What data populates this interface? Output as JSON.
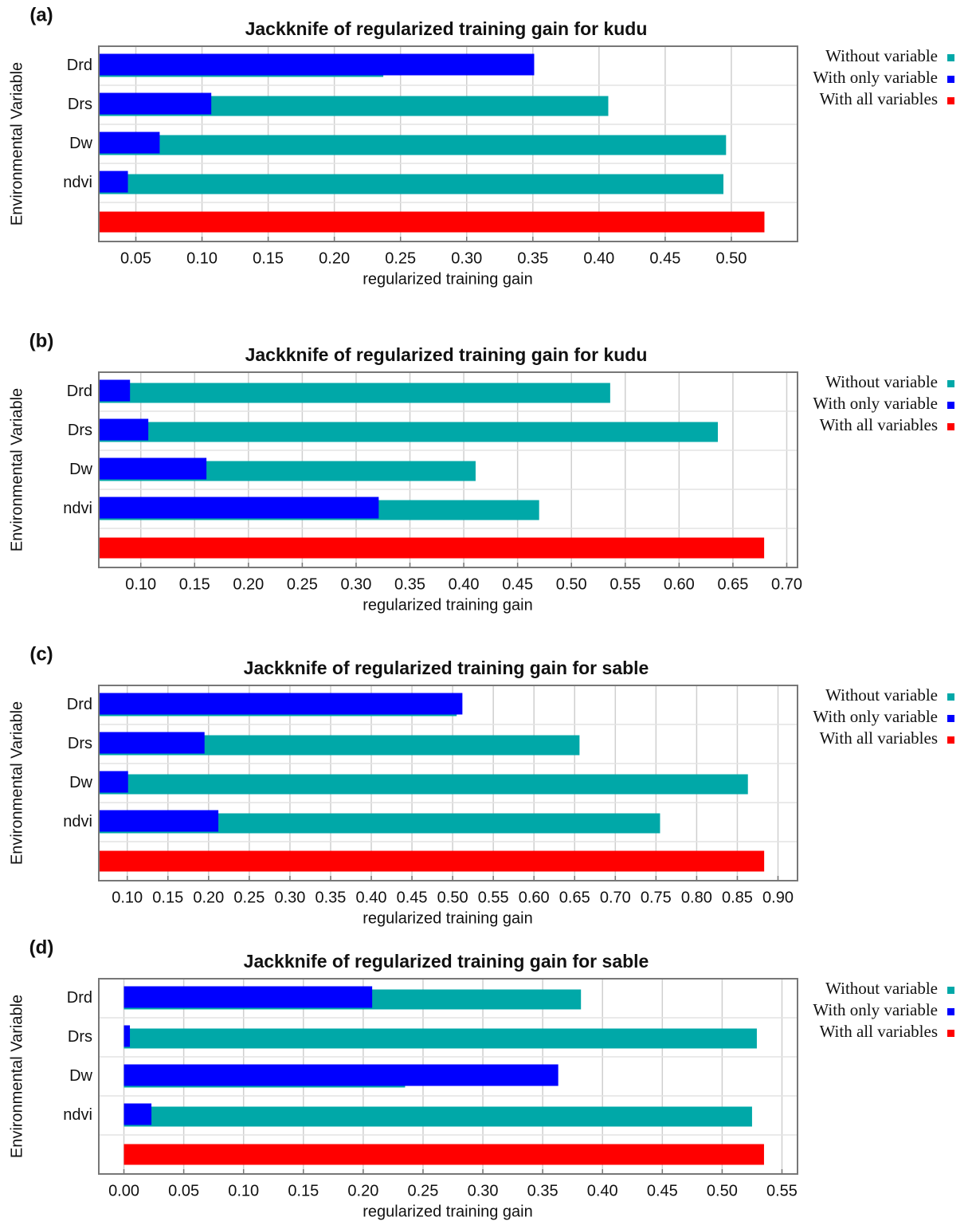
{
  "chart_data": [
    {
      "type": "bar",
      "label": "(a)",
      "title": "Jackknife of regularized training gain for kudu",
      "xlabel": "regularized training gain",
      "ylabel": "Environmental Variable",
      "categories": [
        "Drd",
        "Drs",
        "Dw",
        "ndvi",
        null
      ],
      "series": [
        {
          "name": "Without variable",
          "color": "#00a8a8",
          "values": [
            0.237,
            0.407,
            0.496,
            0.494,
            null
          ]
        },
        {
          "name": "With only variable",
          "color": "#0000ff",
          "values": [
            0.351,
            0.107,
            0.068,
            0.044,
            null
          ]
        },
        {
          "name": "With all variables",
          "color": "#ff0000",
          "values": [
            null,
            null,
            null,
            null,
            0.525
          ]
        }
      ],
      "xlim": [
        0.022,
        0.55
      ],
      "xticks": [
        0.05,
        {
          "value": 0.1,
          "label": "0.10"
        },
        0.15,
        {
          "value": 0.2,
          "label": "0.20"
        },
        0.25,
        {
          "value": 0.3,
          "label": "0.30"
        },
        0.35,
        {
          "value": 0.4,
          "label": "0.40"
        },
        0.45,
        {
          "value": 0.5,
          "label": "0.50"
        }
      ],
      "grid": true
    },
    {
      "type": "bar",
      "label": "(b)",
      "title": "Jackknife of regularized training gain for kudu",
      "xlabel": "regularized training gain",
      "ylabel": "Environmental Variable",
      "categories": [
        "Drd",
        "Drs",
        "Dw",
        "ndvi",
        null
      ],
      "series": [
        {
          "name": "Without variable",
          "color": "#00a8a8",
          "values": [
            0.536,
            0.636,
            0.411,
            0.47,
            null
          ]
        },
        {
          "name": "With only variable",
          "color": "#0000ff",
          "values": [
            0.09,
            0.107,
            0.161,
            0.321,
            null
          ]
        },
        {
          "name": "With all variables",
          "color": "#ff0000",
          "values": [
            null,
            null,
            null,
            null,
            0.679
          ]
        }
      ],
      "xlim": [
        0.061,
        0.71
      ],
      "xticks": [
        {
          "value": 0.1,
          "label": "0.10"
        },
        0.15,
        {
          "value": 0.2,
          "label": "0.20"
        },
        0.25,
        {
          "value": 0.3,
          "label": "0.30"
        },
        0.35,
        {
          "value": 0.4,
          "label": "0.40"
        },
        0.45,
        {
          "value": 0.5,
          "label": "0.50"
        },
        0.55,
        {
          "value": 0.6,
          "label": "0.60"
        },
        0.65,
        {
          "value": 0.7,
          "label": "0.70"
        }
      ],
      "grid": true
    },
    {
      "type": "bar",
      "label": "(c)",
      "title": "Jackknife of regularized training gain for sable",
      "xlabel": "regularized training gain",
      "ylabel": "Environmental Variable",
      "categories": [
        "Drd",
        "Drs",
        "Dw",
        "ndvi",
        null
      ],
      "series": [
        {
          "name": "Without variable",
          "color": "#00a8a8",
          "values": [
            0.505,
            0.656,
            0.863,
            0.755,
            null
          ]
        },
        {
          "name": "With only variable",
          "color": "#0000ff",
          "values": [
            0.512,
            0.195,
            0.101,
            0.212,
            null
          ]
        },
        {
          "name": "With all variables",
          "color": "#ff0000",
          "values": [
            null,
            null,
            null,
            null,
            0.883
          ]
        }
      ],
      "xlim": [
        0.065,
        0.924
      ],
      "xticks": [
        {
          "value": 0.1,
          "label": "0.10"
        },
        0.15,
        {
          "value": 0.2,
          "label": "0.20"
        },
        0.25,
        {
          "value": 0.3,
          "label": "0.30"
        },
        0.35,
        {
          "value": 0.4,
          "label": "0.40"
        },
        0.45,
        {
          "value": 0.5,
          "label": "0.50"
        },
        0.55,
        {
          "value": 0.6,
          "label": "0.60"
        },
        0.65,
        {
          "value": 0.7,
          "label": "0.70"
        },
        0.75,
        {
          "value": 0.8,
          "label": "0.80"
        },
        0.85,
        {
          "value": 0.9,
          "label": "0.90"
        }
      ],
      "grid": true
    },
    {
      "type": "bar",
      "label": "(d)",
      "title": "Jackknife of regularized training gain for sable",
      "xlabel": "regularized training gain",
      "ylabel": "Environmental Variable",
      "categories": [
        "Drd",
        "Drs",
        "Dw",
        "ndvi",
        null
      ],
      "series": [
        {
          "name": "Without variable",
          "color": "#00a8a8",
          "values": [
            0.382,
            0.529,
            0.235,
            0.525,
            null
          ]
        },
        {
          "name": "With only variable",
          "color": "#0000ff",
          "values": [
            0.2075,
            0.005,
            0.363,
            0.023,
            null
          ]
        },
        {
          "name": "With all variables",
          "color": "#ff0000",
          "values": [
            null,
            null,
            null,
            null,
            0.535
          ]
        }
      ],
      "xlim": [
        -0.021,
        0.563
      ],
      "xticks": [
        {
          "value": 0,
          "label": "0.00"
        },
        0.05,
        {
          "value": 0.1,
          "label": "0.10"
        },
        0.15,
        {
          "value": 0.2,
          "label": "0.20"
        },
        0.25,
        {
          "value": 0.3,
          "label": "0.30"
        },
        0.35,
        {
          "value": 0.4,
          "label": "0.40"
        },
        0.45,
        {
          "value": 0.5,
          "label": "0.50"
        },
        0.55
      ],
      "grid": true
    }
  ]
}
